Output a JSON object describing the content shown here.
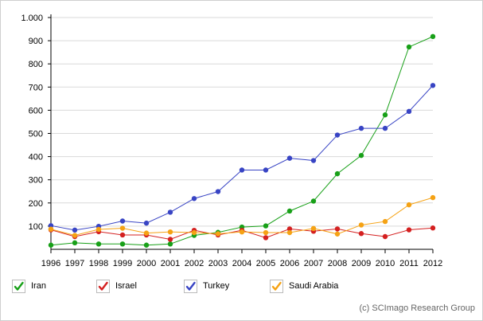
{
  "chart_data": {
    "type": "line",
    "title": "",
    "xlabel": "",
    "ylabel": "",
    "x": [
      1996,
      1997,
      1998,
      1999,
      2000,
      2001,
      2002,
      2003,
      2004,
      2005,
      2006,
      2007,
      2008,
      2009,
      2010,
      2011,
      2012
    ],
    "x_tick_labels": [
      "1996",
      "1997",
      "1998",
      "1999",
      "2000",
      "2001",
      "2002",
      "2003",
      "2004",
      "2005",
      "2006",
      "2007",
      "2008",
      "2009",
      "2010",
      "2011",
      "2012"
    ],
    "ylim": [
      0,
      1000
    ],
    "y_ticks": [
      100,
      200,
      300,
      400,
      500,
      600,
      700,
      800,
      900,
      1000
    ],
    "y_tick_labels": [
      "100",
      "200",
      "300",
      "400",
      "500",
      "600",
      "700",
      "800",
      "900",
      "1.000"
    ],
    "grid": "horizontal",
    "legend_position": "bottom",
    "series": [
      {
        "name": "Iran",
        "color": "#18a018",
        "values": [
          18,
          28,
          23,
          23,
          18,
          23,
          60,
          73,
          96,
          101,
          165,
          208,
          326,
          405,
          580,
          873,
          918
        ]
      },
      {
        "name": "Israel",
        "color": "#d42020",
        "values": [
          84,
          55,
          76,
          62,
          62,
          43,
          82,
          62,
          82,
          50,
          88,
          78,
          88,
          68,
          55,
          84,
          92
        ]
      },
      {
        "name": "Turkey",
        "color": "#3844c4",
        "values": [
          102,
          83,
          99,
          122,
          113,
          160,
          219,
          249,
          342,
          342,
          393,
          383,
          493,
          522,
          522,
          595,
          707
        ]
      },
      {
        "name": "Saudi Arabia",
        "color": "#f5a214",
        "values": [
          87,
          60,
          86,
          91,
          70,
          75,
          72,
          67,
          75,
          72,
          72,
          90,
          66,
          105,
          120,
          192,
          223
        ]
      }
    ]
  },
  "legend": {
    "items": [
      {
        "label": "Iran",
        "color": "#18a018"
      },
      {
        "label": "Israel",
        "color": "#d42020"
      },
      {
        "label": "Turkey",
        "color": "#3844c4"
      },
      {
        "label": "Saudi Arabia",
        "color": "#f5a214"
      }
    ]
  },
  "credit": "(c) SCImago Research Group"
}
